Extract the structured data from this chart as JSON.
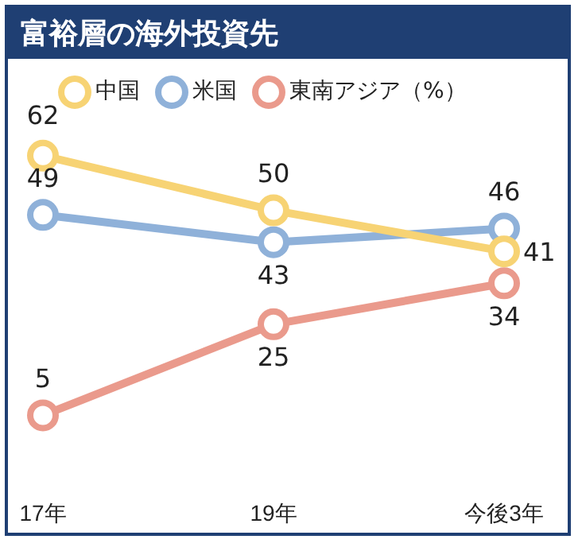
{
  "chart_data": {
    "type": "line",
    "title": "富裕層の海外投資先",
    "categories": [
      "17年",
      "19年",
      "今後3年"
    ],
    "series": [
      {
        "name": "中国",
        "color": "#f7d374",
        "values": [
          62,
          50,
          41
        ]
      },
      {
        "name": "米国",
        "color": "#8fb1d9",
        "values": [
          49,
          43,
          46
        ]
      },
      {
        "name": "東南アジア（%）",
        "color": "#ea9a8c",
        "values": [
          5,
          25,
          34
        ]
      }
    ],
    "data_labels": true,
    "legend": "top left",
    "grid": false,
    "marker": "circle",
    "line_style": "solid"
  }
}
